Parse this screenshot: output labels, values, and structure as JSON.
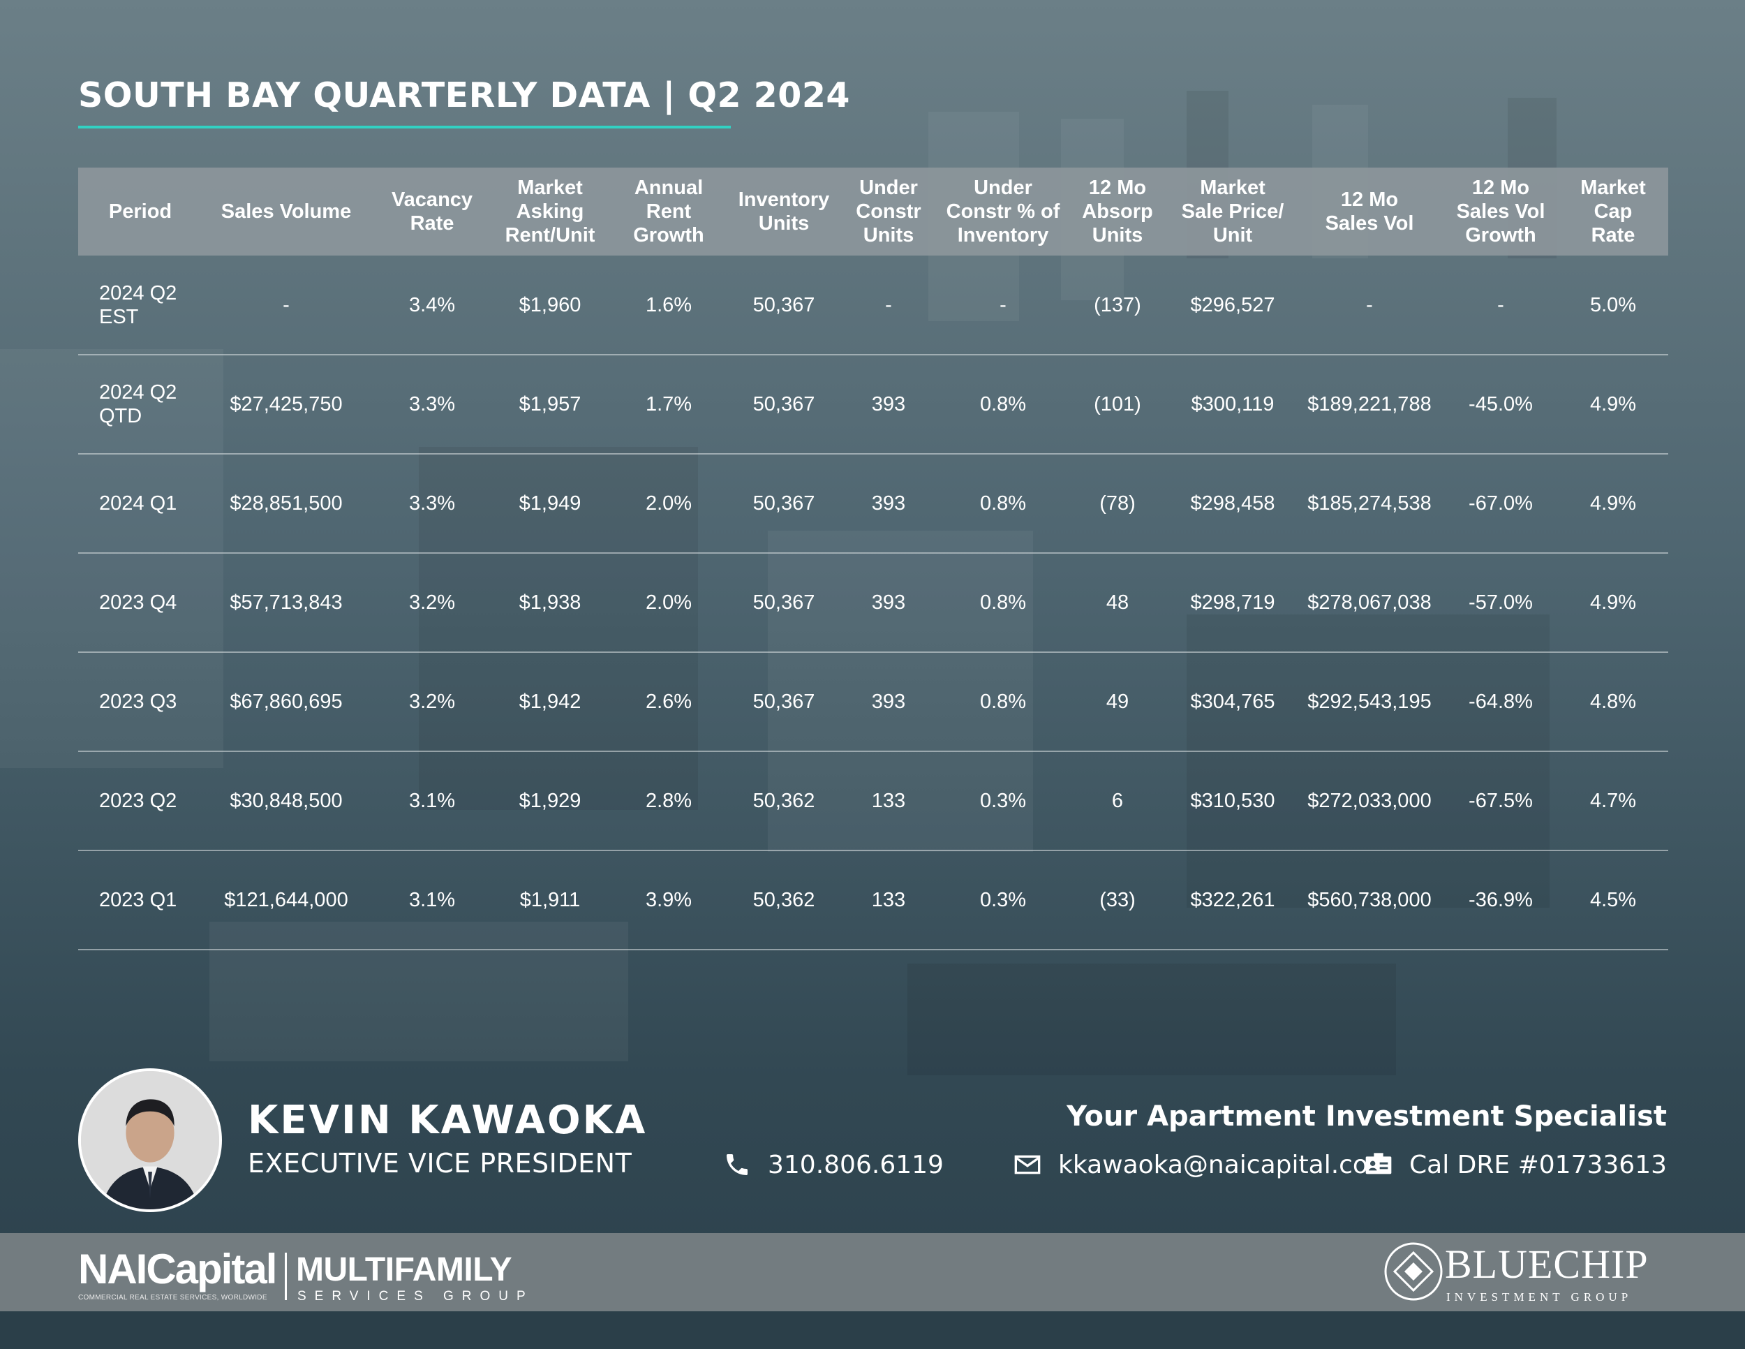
{
  "title": "SOUTH BAY QUARTERLY DATA | Q2 2024",
  "colors": {
    "accent": "#32d1c3",
    "header_bg": "#8c969b",
    "footer_bg": "#737c80"
  },
  "table": {
    "headers": {
      "period": "Period",
      "sales_volume": "Sales Volume",
      "vacancy_rate": [
        "Vacancy",
        "Rate"
      ],
      "market_asking_rent": [
        "Market",
        "Asking",
        "Rent/Unit"
      ],
      "annual_rent_growth": [
        "Annual",
        "Rent",
        "Growth"
      ],
      "inventory_units": [
        "Inventory",
        "Units"
      ],
      "under_constr_units": [
        "Under",
        "Constr",
        "Units"
      ],
      "under_constr_pct": [
        "Under",
        "Constr % of",
        "Inventory"
      ],
      "absorp_units": [
        "12 Mo",
        "Absorp",
        "Units"
      ],
      "sale_price_unit": [
        "Market",
        "Sale Price/",
        "Unit"
      ],
      "sales_vol_12mo": [
        "12 Mo",
        "Sales Vol"
      ],
      "sales_vol_growth": [
        "12 Mo",
        "Sales Vol",
        "Growth"
      ],
      "cap_rate": [
        "Market",
        "Cap",
        "Rate"
      ]
    },
    "rows": [
      {
        "period": [
          "2024 Q2",
          "EST"
        ],
        "cells": [
          "-",
          "3.4%",
          "$1,960",
          "1.6%",
          "50,367",
          "-",
          "-",
          "(137)",
          "$296,527",
          "-",
          "-",
          "5.0%"
        ]
      },
      {
        "period": [
          "2024 Q2",
          "QTD"
        ],
        "cells": [
          "$27,425,750",
          "3.3%",
          "$1,957",
          "1.7%",
          "50,367",
          "393",
          "0.8%",
          "(101)",
          "$300,119",
          "$189,221,788",
          "-45.0%",
          "4.9%"
        ]
      },
      {
        "period": [
          "2024 Q1"
        ],
        "cells": [
          "$28,851,500",
          "3.3%",
          "$1,949",
          "2.0%",
          "50,367",
          "393",
          "0.8%",
          "(78)",
          "$298,458",
          "$185,274,538",
          "-67.0%",
          "4.9%"
        ]
      },
      {
        "period": [
          "2023 Q4"
        ],
        "cells": [
          "$57,713,843",
          "3.2%",
          "$1,938",
          "2.0%",
          "50,367",
          "393",
          "0.8%",
          "48",
          "$298,719",
          "$278,067,038",
          "-57.0%",
          "4.9%"
        ]
      },
      {
        "period": [
          "2023 Q3"
        ],
        "cells": [
          "$67,860,695",
          "3.2%",
          "$1,942",
          "2.6%",
          "50,367",
          "393",
          "0.8%",
          "49",
          "$304,765",
          "$292,543,195",
          "-64.8%",
          "4.8%"
        ]
      },
      {
        "period": [
          "2023 Q2"
        ],
        "cells": [
          "$30,848,500",
          "3.1%",
          "$1,929",
          "2.8%",
          "50,362",
          "133",
          "0.3%",
          "6",
          "$310,530",
          "$272,033,000",
          "-67.5%",
          "4.7%"
        ]
      },
      {
        "period": [
          "2023 Q1"
        ],
        "cells": [
          "$121,644,000",
          "3.1%",
          "$1,911",
          "3.9%",
          "50,362",
          "133",
          "0.3%",
          "(33)",
          "$322,261",
          "$560,738,000",
          "-36.9%",
          "4.5%"
        ]
      }
    ]
  },
  "contact": {
    "name": "KEVIN KAWAOKA",
    "role": "EXECUTIVE VICE PRESIDENT",
    "tagline": "Your Apartment Investment Specialist",
    "phone": "310.806.6119",
    "email": "kkawaoka@naicapital.com",
    "license": "Cal DRE #01733613",
    "icons": {
      "phone": "phone-icon",
      "email": "envelope-icon",
      "license": "id-card-icon"
    }
  },
  "footer": {
    "nai_logo": "NAICapital",
    "nai_tagline": "COMMERCIAL REAL ESTATE SERVICES, WORLDWIDE",
    "mf_logo": "MULTIFAMILY",
    "mf_sub": "SERVICES GROUP",
    "bluechip_logo": "BLUECHIP",
    "bluechip_sub": "INVESTMENT GROUP"
  }
}
